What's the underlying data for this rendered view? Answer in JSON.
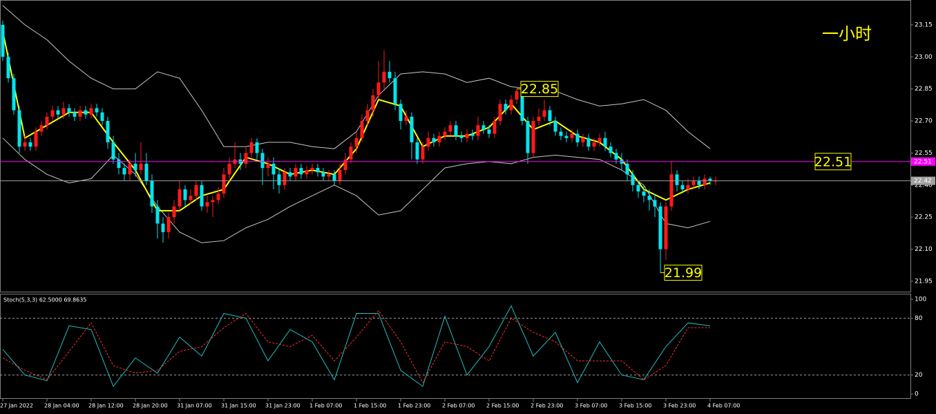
{
  "chart_data": [
    {
      "type": "candlestick",
      "title": "一小时",
      "xlim": [
        -0.5,
        164.25
      ],
      "ylim": [
        21.898,
        23.266
      ],
      "yticks": [
        21.95,
        {
          "value": 22.1,
          "label": "22.10"
        },
        22.25,
        {
          "value": 22.4,
          "label": "22.40"
        },
        22.55,
        {
          "value": 22.7,
          "label": "22.70"
        },
        22.85,
        {
          "value": 23.0,
          "label": "23.00"
        },
        23.15
      ],
      "up_color": "#ff1a1a",
      "down_color": "#00e5ee",
      "open": [
        23.15,
        23.0,
        22.9,
        22.75,
        22.58,
        22.6,
        22.58,
        22.65,
        22.68,
        22.72,
        22.75,
        22.73,
        22.76,
        22.74,
        22.72,
        22.75,
        22.73,
        22.76,
        22.74,
        22.7,
        22.6,
        22.52,
        22.48,
        22.45,
        22.5,
        22.47,
        22.5,
        22.42,
        22.3,
        22.22,
        22.18,
        22.25,
        22.3,
        22.38,
        22.33,
        22.35,
        22.4,
        22.3,
        22.32,
        22.33,
        22.36,
        22.45,
        22.5,
        22.52,
        22.5,
        22.55,
        22.6,
        22.55,
        22.48,
        22.5,
        22.45,
        22.4,
        22.46,
        22.44,
        22.48,
        22.45,
        22.47,
        22.48,
        22.46,
        22.44,
        22.45,
        22.42,
        22.47,
        22.52,
        22.58,
        22.62,
        22.7,
        22.75,
        22.82,
        22.88,
        22.93,
        22.9,
        22.78,
        22.7,
        22.72,
        22.6,
        22.52,
        22.58,
        22.62,
        22.6,
        22.63,
        22.65,
        22.68,
        22.63,
        22.62,
        22.64,
        22.63,
        22.68,
        22.66,
        22.64,
        22.7,
        22.78,
        22.75,
        22.8,
        22.84,
        22.7,
        22.55,
        22.7,
        22.72,
        22.75,
        22.7,
        22.65,
        22.63,
        22.62,
        22.64,
        22.6,
        22.62,
        22.58,
        22.6,
        22.62,
        22.58,
        22.55,
        22.52,
        22.5,
        22.45,
        22.4,
        22.37,
        22.35,
        22.33,
        22.3,
        22.1,
        22.3,
        22.45,
        22.4,
        22.38,
        22.4,
        22.42,
        22.4,
        22.43,
        22.42
      ],
      "high": [
        23.17,
        23.02,
        22.92,
        22.77,
        22.63,
        22.62,
        22.67,
        22.7,
        22.74,
        22.77,
        22.77,
        22.79,
        22.78,
        22.76,
        22.77,
        22.77,
        22.78,
        22.78,
        22.76,
        22.72,
        22.63,
        22.55,
        22.5,
        22.52,
        22.55,
        22.6,
        22.55,
        22.45,
        22.33,
        22.25,
        22.27,
        22.33,
        22.42,
        22.4,
        22.38,
        22.42,
        22.42,
        22.35,
        22.35,
        22.39,
        22.48,
        22.53,
        22.6,
        22.55,
        22.58,
        22.62,
        22.62,
        22.57,
        22.53,
        22.53,
        22.48,
        22.48,
        22.48,
        22.5,
        22.5,
        22.49,
        22.5,
        22.5,
        22.48,
        22.47,
        22.47,
        22.5,
        22.55,
        22.6,
        22.65,
        22.73,
        22.78,
        22.85,
        22.98,
        23.03,
        22.98,
        22.93,
        22.8,
        22.75,
        22.74,
        22.62,
        22.6,
        22.65,
        22.64,
        22.65,
        22.67,
        22.7,
        22.7,
        22.65,
        22.66,
        22.66,
        22.72,
        22.7,
        22.68,
        22.72,
        22.8,
        22.8,
        22.82,
        22.85,
        22.85,
        22.72,
        22.72,
        22.76,
        22.8,
        22.77,
        22.72,
        22.67,
        22.65,
        22.66,
        22.66,
        22.64,
        22.64,
        22.62,
        22.64,
        22.65,
        22.6,
        22.57,
        22.55,
        22.52,
        22.47,
        22.42,
        22.4,
        22.38,
        22.36,
        22.32,
        22.32,
        22.51,
        22.47,
        22.42,
        22.43,
        22.44,
        22.44,
        22.45,
        22.44,
        22.44
      ],
      "low": [
        22.98,
        22.88,
        22.73,
        22.55,
        22.56,
        22.56,
        22.56,
        22.63,
        22.66,
        22.7,
        22.71,
        22.71,
        22.72,
        22.7,
        22.7,
        22.71,
        22.71,
        22.72,
        22.68,
        22.57,
        22.5,
        22.45,
        22.42,
        22.42,
        22.44,
        22.45,
        22.4,
        22.27,
        22.15,
        22.13,
        22.15,
        22.22,
        22.28,
        22.3,
        22.31,
        22.33,
        22.28,
        22.27,
        22.25,
        22.31,
        22.34,
        22.43,
        22.48,
        22.47,
        22.48,
        22.53,
        22.52,
        22.4,
        22.44,
        22.38,
        22.36,
        22.38,
        22.42,
        22.42,
        22.43,
        22.43,
        22.45,
        22.44,
        22.42,
        22.42,
        22.4,
        22.4,
        22.45,
        22.5,
        22.55,
        22.6,
        22.68,
        22.72,
        22.8,
        22.85,
        22.88,
        22.75,
        22.66,
        22.68,
        22.52,
        22.5,
        22.5,
        22.56,
        22.58,
        22.58,
        22.61,
        22.63,
        22.61,
        22.6,
        22.6,
        22.61,
        22.61,
        22.64,
        22.62,
        22.62,
        22.68,
        22.73,
        22.73,
        22.78,
        22.68,
        22.5,
        22.53,
        22.68,
        22.7,
        22.68,
        22.63,
        22.61,
        22.6,
        22.6,
        22.58,
        22.58,
        22.56,
        22.56,
        22.58,
        22.56,
        22.53,
        22.5,
        22.47,
        22.42,
        22.37,
        22.34,
        22.32,
        22.28,
        22.25,
        21.99,
        22.05,
        22.28,
        22.37,
        22.36,
        22.36,
        22.38,
        22.38,
        22.38,
        22.4,
        22.4
      ],
      "close": [
        23.0,
        22.9,
        22.75,
        22.58,
        22.6,
        22.58,
        22.65,
        22.68,
        22.72,
        22.75,
        22.73,
        22.76,
        22.74,
        22.72,
        22.75,
        22.73,
        22.76,
        22.74,
        22.7,
        22.6,
        22.52,
        22.48,
        22.45,
        22.5,
        22.47,
        22.5,
        22.42,
        22.3,
        22.22,
        22.18,
        22.25,
        22.3,
        22.38,
        22.33,
        22.35,
        22.4,
        22.3,
        22.32,
        22.33,
        22.36,
        22.45,
        22.5,
        22.52,
        22.5,
        22.55,
        22.6,
        22.55,
        22.48,
        22.5,
        22.45,
        22.4,
        22.46,
        22.44,
        22.48,
        22.45,
        22.47,
        22.48,
        22.46,
        22.44,
        22.45,
        22.42,
        22.47,
        22.52,
        22.58,
        22.62,
        22.7,
        22.75,
        22.82,
        22.88,
        22.93,
        22.9,
        22.78,
        22.7,
        22.72,
        22.6,
        22.52,
        22.58,
        22.62,
        22.6,
        22.63,
        22.65,
        22.68,
        22.63,
        22.62,
        22.64,
        22.63,
        22.68,
        22.66,
        22.64,
        22.7,
        22.78,
        22.75,
        22.8,
        22.84,
        22.7,
        22.55,
        22.7,
        22.72,
        22.75,
        22.7,
        22.65,
        22.63,
        22.62,
        22.64,
        22.6,
        22.62,
        22.58,
        22.6,
        22.62,
        22.58,
        22.55,
        22.52,
        22.5,
        22.45,
        22.4,
        22.37,
        22.35,
        22.33,
        22.3,
        22.1,
        22.3,
        22.45,
        22.4,
        22.38,
        22.4,
        22.42,
        22.4,
        22.43,
        22.42,
        22.42
      ],
      "overlay_x": [
        0,
        4,
        8,
        12,
        16,
        20,
        24,
        28,
        32,
        36,
        40,
        44,
        48,
        52,
        56,
        60,
        64,
        68,
        72,
        76,
        80,
        84,
        88,
        92,
        96,
        100,
        104,
        108,
        112,
        116,
        120,
        124,
        128
      ],
      "overlays": [
        {
          "color": "#c8c8c8",
          "values": [
            23.24,
            23.15,
            23.08,
            22.98,
            22.9,
            22.85,
            22.85,
            22.93,
            22.9,
            22.75,
            22.58,
            22.58,
            22.6,
            22.6,
            22.58,
            22.57,
            22.65,
            22.82,
            22.92,
            22.93,
            22.92,
            22.88,
            22.9,
            22.86,
            22.85,
            22.84,
            22.8,
            22.77,
            22.78,
            22.8,
            22.75,
            22.65,
            22.57
          ]
        },
        {
          "color": "#c8c8c8",
          "values": [
            22.62,
            22.52,
            22.45,
            22.41,
            22.43,
            22.54,
            22.45,
            22.3,
            22.18,
            22.13,
            22.14,
            22.2,
            22.24,
            22.3,
            22.35,
            22.4,
            22.35,
            22.26,
            22.28,
            22.38,
            22.48,
            22.5,
            22.51,
            22.5,
            22.53,
            22.54,
            22.53,
            22.52,
            22.47,
            22.4,
            22.22,
            22.2,
            22.23
          ]
        },
        {
          "color": "#ffff00",
          "width": 2,
          "values": [
            23.12,
            22.62,
            22.68,
            22.74,
            22.74,
            22.6,
            22.47,
            22.28,
            22.28,
            22.35,
            22.38,
            22.53,
            22.5,
            22.45,
            22.47,
            22.45,
            22.57,
            22.8,
            22.77,
            22.58,
            22.63,
            22.63,
            22.67,
            22.78,
            22.66,
            22.7,
            22.63,
            22.6,
            22.52,
            22.38,
            22.33,
            22.38,
            22.41
          ]
        }
      ],
      "hlines": [
        {
          "value": 22.51,
          "color": "#ff00ff",
          "callout": true
        },
        {
          "value": 22.42,
          "color": "#a0a0a0",
          "callout": false
        }
      ],
      "annotations": [
        {
          "x": 93,
          "value": 22.85
        },
        {
          "x": 119,
          "value": 21.99
        }
      ]
    },
    {
      "type": "line",
      "label": "Stoch(5,3,3) 62.5000 69.8635",
      "xlim": [
        -0.5,
        164.25
      ],
      "ylim": [
        -5.1,
        105.1
      ],
      "yticks": [
        0,
        20,
        80,
        100
      ],
      "levels": [
        20,
        80
      ],
      "xticks": [
        {
          "value": 0,
          "label": "27 Jan 2022"
        },
        {
          "value": 8,
          "label": "28 Jan 04:00"
        },
        {
          "value": 16,
          "label": "28 Jan 12:00"
        },
        {
          "value": 24,
          "label": "28 Jan 20:00"
        },
        {
          "value": 32,
          "label": "31 Jan 07:00"
        },
        {
          "value": 40,
          "label": "31 Jan 15:00"
        },
        {
          "value": 48,
          "label": "31 Jan 23:00"
        },
        {
          "value": 56,
          "label": "1 Feb 07:00"
        },
        {
          "value": 64,
          "label": "1 Feb 15:00"
        },
        {
          "value": 72,
          "label": "1 Feb 23:00"
        },
        {
          "value": 80,
          "label": "2 Feb 07:00"
        },
        {
          "value": 88,
          "label": "2 Feb 15:00"
        },
        {
          "value": 96,
          "label": "2 Feb 23:00"
        },
        {
          "value": 104,
          "label": "3 Feb 07:00"
        },
        {
          "value": 112,
          "label": "3 Feb 15:00"
        },
        {
          "value": 120,
          "label": "3 Feb 23:00"
        },
        {
          "value": 128,
          "label": "4 Feb 07:00"
        }
      ],
      "x": [
        0,
        4,
        8,
        12,
        16,
        20,
        24,
        28,
        32,
        36,
        40,
        44,
        48,
        52,
        56,
        60,
        64,
        68,
        72,
        76,
        80,
        84,
        88,
        92,
        96,
        100,
        104,
        108,
        112,
        116,
        120,
        124,
        128
      ],
      "series": [
        {
          "color": "#20c0c0",
          "dashed": false,
          "values": [
            47,
            20,
            14,
            72,
            68,
            8,
            38,
            22,
            60,
            40,
            85,
            80,
            35,
            68,
            55,
            15,
            85,
            85,
            25,
            8,
            82,
            20,
            50,
            93,
            40,
            65,
            12,
            55,
            20,
            15,
            50,
            75,
            72
          ]
        },
        {
          "color": "#ff3030",
          "dashed": true,
          "values": [
            38,
            25,
            15,
            45,
            75,
            30,
            22,
            25,
            45,
            50,
            70,
            85,
            55,
            50,
            62,
            35,
            60,
            88,
            55,
            12,
            55,
            50,
            35,
            80,
            65,
            55,
            35,
            35,
            35,
            15,
            30,
            70,
            70
          ]
        }
      ]
    }
  ]
}
